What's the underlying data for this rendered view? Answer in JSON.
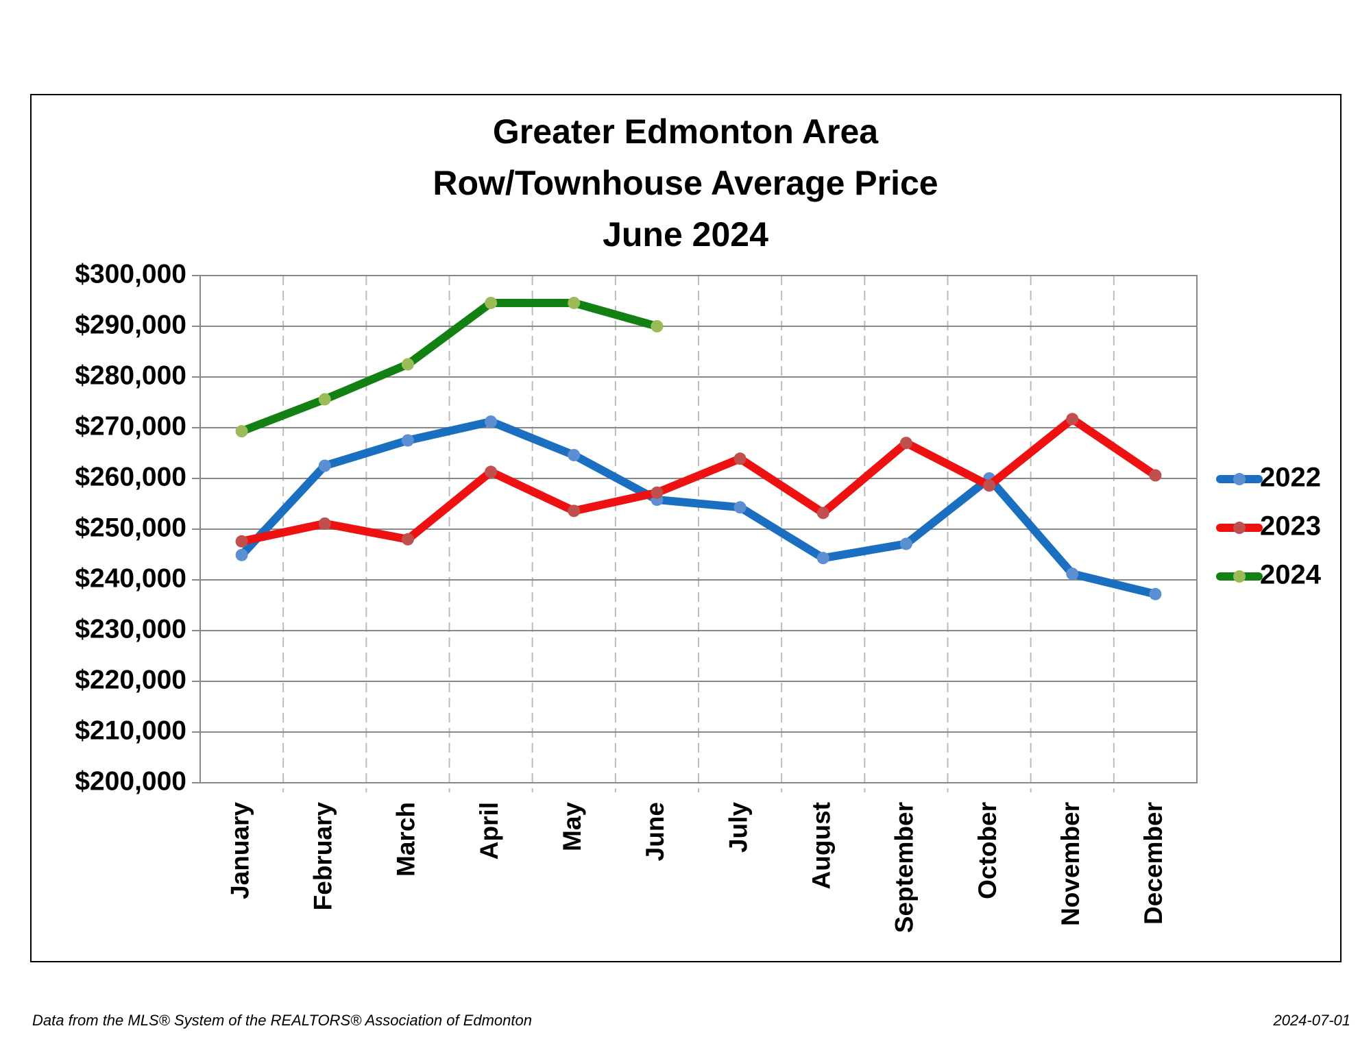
{
  "chart_data": {
    "type": "line",
    "title_lines": [
      "Greater Edmonton Area",
      "Row/Townhouse Average Price",
      "June 2024"
    ],
    "categories": [
      "January",
      "February",
      "March",
      "April",
      "May",
      "June",
      "July",
      "August",
      "September",
      "October",
      "November",
      "December"
    ],
    "series": [
      {
        "name": "2022",
        "color": "#1a6fc0",
        "marker_color": "#5b8fd1",
        "values": [
          244900,
          262500,
          267500,
          271200,
          264600,
          255800,
          254300,
          244300,
          247100,
          260000,
          241200,
          237200
        ]
      },
      {
        "name": "2023",
        "color": "#ee1111",
        "marker_color": "#c0504d",
        "values": [
          247600,
          251100,
          248000,
          261300,
          253600,
          257200,
          263900,
          253200,
          267000,
          258600,
          271700,
          260600
        ]
      },
      {
        "name": "2024",
        "color": "#138013",
        "marker_color": "#9bbb59",
        "values": [
          269300,
          275600,
          282500,
          294600,
          294600,
          290000,
          null,
          null,
          null,
          null,
          null,
          null
        ]
      }
    ],
    "ylim": [
      200000,
      300000
    ],
    "yticks": [
      {
        "value": 200000,
        "label": "$200,000"
      },
      {
        "value": 210000,
        "label": "$210,000"
      },
      {
        "value": 220000,
        "label": "$220,000"
      },
      {
        "value": 230000,
        "label": "$230,000"
      },
      {
        "value": 240000,
        "label": "$240,000"
      },
      {
        "value": 250000,
        "label": "$250,000"
      },
      {
        "value": 260000,
        "label": "$260,000"
      },
      {
        "value": 270000,
        "label": "$270,000"
      },
      {
        "value": 280000,
        "label": "$280,000"
      },
      {
        "value": 290000,
        "label": "$290,000"
      },
      {
        "value": 300000,
        "label": "$300,000"
      }
    ],
    "grid": true,
    "legend": "right",
    "source": "Data from the MLS® System of the REALTORS® Association of Edmonton",
    "date": "2024-07-01"
  }
}
